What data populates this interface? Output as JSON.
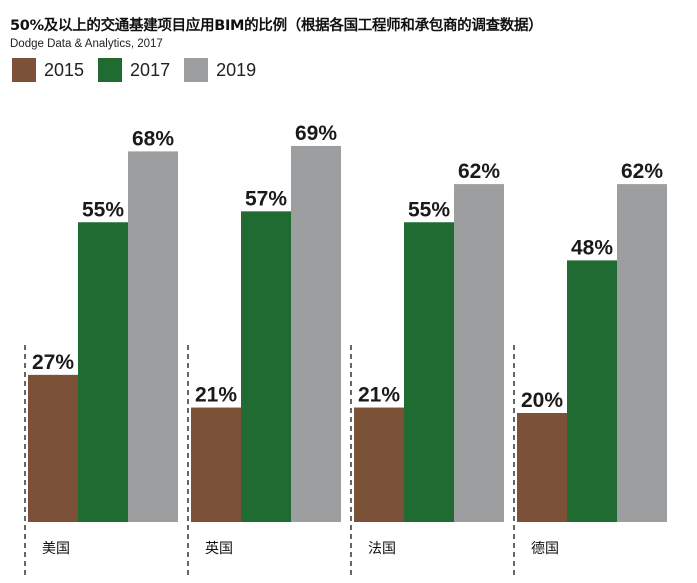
{
  "title": "50%及以上的交通基建项目应用BIM的比例（根据各国工程师和承包商的调查数据）",
  "source": "Dodge Data & Analytics, 2017",
  "colors": {
    "2015": "#7b5138",
    "2017": "#1f6b32",
    "2019": "#9c9ea0"
  },
  "chart_data": {
    "type": "bar",
    "title": "50%及以上的交通基建项目应用BIM的比例（根据各国工程师和承包商的调查数据）",
    "categories": [
      "美国",
      "英国",
      "法国",
      "德国"
    ],
    "series": [
      {
        "name": "2015",
        "values": [
          27,
          21,
          21,
          20
        ]
      },
      {
        "name": "2017",
        "values": [
          55,
          57,
          55,
          48
        ]
      },
      {
        "name": "2019",
        "values": [
          68,
          69,
          62,
          62
        ]
      }
    ],
    "value_suffix": "%",
    "ylim": [
      0,
      75
    ],
    "legend": "top-left",
    "grid": false
  }
}
